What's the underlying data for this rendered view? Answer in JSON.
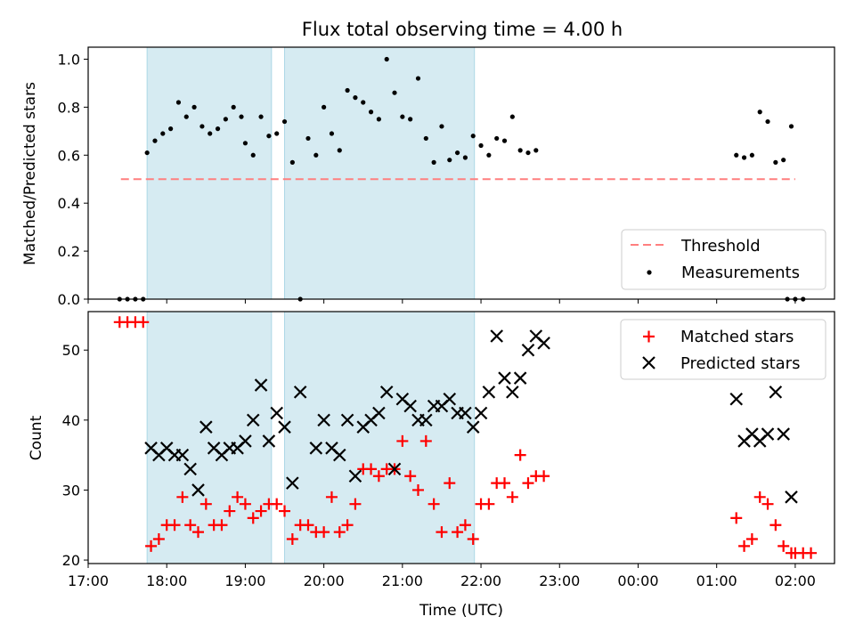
{
  "chart_data": [
    {
      "type": "scatter",
      "title": "Flux total observing time = 4.00 h",
      "ylabel": "Matched/Predicted stars",
      "xlim": [
        "17:00",
        "02:30"
      ],
      "ylim": [
        0.0,
        1.05
      ],
      "yticks": [
        "0.0",
        "0.2",
        "0.4",
        "0.6",
        "0.8",
        "1.0"
      ],
      "legend_position": "lower-right",
      "shaded_intervals": [
        [
          "17:45",
          "19:20"
        ],
        [
          "19:30",
          "21:55"
        ]
      ],
      "threshold": {
        "name": "Threshold",
        "y": 0.5,
        "x_start": "17:25",
        "x_end": "02:00",
        "color": "#ff7f7f"
      },
      "series": [
        {
          "name": "Measurements",
          "color": "#000000",
          "points": [
            [
              "17:24",
              0.0
            ],
            [
              "17:30",
              0.0
            ],
            [
              "17:36",
              0.0
            ],
            [
              "17:42",
              0.0
            ],
            [
              "17:45",
              0.61
            ],
            [
              "17:51",
              0.66
            ],
            [
              "17:57",
              0.69
            ],
            [
              "18:03",
              0.71
            ],
            [
              "18:09",
              0.82
            ],
            [
              "18:15",
              0.76
            ],
            [
              "18:21",
              0.8
            ],
            [
              "18:27",
              0.72
            ],
            [
              "18:33",
              0.69
            ],
            [
              "18:39",
              0.71
            ],
            [
              "18:45",
              0.75
            ],
            [
              "18:51",
              0.8
            ],
            [
              "18:57",
              0.76
            ],
            [
              "19:00",
              0.65
            ],
            [
              "19:06",
              0.6
            ],
            [
              "19:12",
              0.76
            ],
            [
              "19:18",
              0.68
            ],
            [
              "19:24",
              0.69
            ],
            [
              "19:30",
              0.74
            ],
            [
              "19:36",
              0.57
            ],
            [
              "19:42",
              0.0
            ],
            [
              "19:48",
              0.67
            ],
            [
              "19:54",
              0.6
            ],
            [
              "20:00",
              0.8
            ],
            [
              "20:06",
              0.69
            ],
            [
              "20:12",
              0.62
            ],
            [
              "20:18",
              0.87
            ],
            [
              "20:24",
              0.84
            ],
            [
              "20:30",
              0.82
            ],
            [
              "20:36",
              0.78
            ],
            [
              "20:42",
              0.75
            ],
            [
              "20:48",
              1.0
            ],
            [
              "20:54",
              0.86
            ],
            [
              "21:00",
              0.76
            ],
            [
              "21:06",
              0.75
            ],
            [
              "21:12",
              0.92
            ],
            [
              "21:18",
              0.67
            ],
            [
              "21:24",
              0.57
            ],
            [
              "21:30",
              0.72
            ],
            [
              "21:36",
              0.58
            ],
            [
              "21:42",
              0.61
            ],
            [
              "21:48",
              0.59
            ],
            [
              "21:54",
              0.68
            ],
            [
              "22:00",
              0.64
            ],
            [
              "22:06",
              0.6
            ],
            [
              "22:12",
              0.67
            ],
            [
              "22:18",
              0.66
            ],
            [
              "22:24",
              0.76
            ],
            [
              "22:30",
              0.62
            ],
            [
              "22:36",
              0.61
            ],
            [
              "22:42",
              0.62
            ],
            [
              "01:15",
              0.6
            ],
            [
              "01:21",
              0.59
            ],
            [
              "01:27",
              0.6
            ],
            [
              "01:33",
              0.78
            ],
            [
              "01:39",
              0.74
            ],
            [
              "01:45",
              0.57
            ],
            [
              "01:51",
              0.58
            ],
            [
              "01:57",
              0.72
            ],
            [
              "01:54",
              0.0
            ],
            [
              "02:00",
              0.0
            ],
            [
              "02:06",
              0.0
            ]
          ]
        }
      ]
    },
    {
      "type": "scatter",
      "xlabel": "Time (UTC)",
      "ylabel": "Count",
      "xlim": [
        "17:00",
        "02:30"
      ],
      "ylim": [
        19.5,
        55.5
      ],
      "xticks": [
        "17:00",
        "18:00",
        "19:00",
        "20:00",
        "21:00",
        "22:00",
        "23:00",
        "00:00",
        "01:00",
        "02:00"
      ],
      "yticks": [
        "20",
        "30",
        "40",
        "50"
      ],
      "legend_position": "upper-right",
      "shaded_intervals": [
        [
          "17:45",
          "19:20"
        ],
        [
          "19:30",
          "21:55"
        ]
      ],
      "series": [
        {
          "name": "Matched stars",
          "color": "#ff0000",
          "marker": "+",
          "points": [
            [
              "17:24",
              54
            ],
            [
              "17:30",
              54
            ],
            [
              "17:36",
              54
            ],
            [
              "17:42",
              54
            ],
            [
              "17:48",
              22
            ],
            [
              "17:54",
              23
            ],
            [
              "18:00",
              25
            ],
            [
              "18:06",
              25
            ],
            [
              "18:12",
              29
            ],
            [
              "18:18",
              25
            ],
            [
              "18:24",
              24
            ],
            [
              "18:30",
              28
            ],
            [
              "18:36",
              25
            ],
            [
              "18:42",
              25
            ],
            [
              "18:48",
              27
            ],
            [
              "18:54",
              29
            ],
            [
              "19:00",
              28
            ],
            [
              "19:06",
              26
            ],
            [
              "19:12",
              27
            ],
            [
              "19:18",
              28
            ],
            [
              "19:24",
              28
            ],
            [
              "19:30",
              27
            ],
            [
              "19:36",
              23
            ],
            [
              "19:42",
              25
            ],
            [
              "19:48",
              25
            ],
            [
              "19:54",
              24
            ],
            [
              "20:00",
              24
            ],
            [
              "20:06",
              29
            ],
            [
              "20:12",
              24
            ],
            [
              "20:18",
              25
            ],
            [
              "20:24",
              28
            ],
            [
              "20:30",
              33
            ],
            [
              "20:36",
              33
            ],
            [
              "20:42",
              32
            ],
            [
              "20:48",
              33
            ],
            [
              "20:54",
              33
            ],
            [
              "21:00",
              37
            ],
            [
              "21:06",
              32
            ],
            [
              "21:12",
              30
            ],
            [
              "21:18",
              37
            ],
            [
              "21:24",
              28
            ],
            [
              "21:30",
              24
            ],
            [
              "21:36",
              31
            ],
            [
              "21:42",
              24
            ],
            [
              "21:48",
              25
            ],
            [
              "21:54",
              23
            ],
            [
              "22:00",
              28
            ],
            [
              "22:06",
              28
            ],
            [
              "22:12",
              31
            ],
            [
              "22:18",
              31
            ],
            [
              "22:24",
              29
            ],
            [
              "22:30",
              35
            ],
            [
              "22:36",
              31
            ],
            [
              "22:42",
              32
            ],
            [
              "22:48",
              32
            ],
            [
              "01:15",
              26
            ],
            [
              "01:21",
              22
            ],
            [
              "01:27",
              23
            ],
            [
              "01:33",
              29
            ],
            [
              "01:39",
              28
            ],
            [
              "01:45",
              25
            ],
            [
              "01:51",
              22
            ],
            [
              "01:57",
              21
            ],
            [
              "02:00",
              21
            ],
            [
              "02:06",
              21
            ],
            [
              "02:12",
              21
            ]
          ]
        },
        {
          "name": "Predicted stars",
          "color": "#000000",
          "marker": "x",
          "points": [
            [
              "17:48",
              36
            ],
            [
              "17:54",
              35
            ],
            [
              "18:00",
              36
            ],
            [
              "18:06",
              35
            ],
            [
              "18:12",
              35
            ],
            [
              "18:18",
              33
            ],
            [
              "18:24",
              30
            ],
            [
              "18:30",
              39
            ],
            [
              "18:36",
              36
            ],
            [
              "18:42",
              35
            ],
            [
              "18:48",
              36
            ],
            [
              "18:54",
              36
            ],
            [
              "19:00",
              37
            ],
            [
              "19:06",
              40
            ],
            [
              "19:12",
              45
            ],
            [
              "19:18",
              37
            ],
            [
              "19:24",
              41
            ],
            [
              "19:30",
              39
            ],
            [
              "19:36",
              31
            ],
            [
              "19:42",
              44
            ],
            [
              "19:54",
              36
            ],
            [
              "20:00",
              40
            ],
            [
              "20:06",
              36
            ],
            [
              "20:12",
              35
            ],
            [
              "20:18",
              40
            ],
            [
              "20:24",
              32
            ],
            [
              "20:30",
              39
            ],
            [
              "20:36",
              40
            ],
            [
              "20:42",
              41
            ],
            [
              "20:48",
              44
            ],
            [
              "20:54",
              33
            ],
            [
              "21:00",
              43
            ],
            [
              "21:06",
              42
            ],
            [
              "21:12",
              40
            ],
            [
              "21:18",
              40
            ],
            [
              "21:24",
              42
            ],
            [
              "21:30",
              42
            ],
            [
              "21:36",
              43
            ],
            [
              "21:42",
              41
            ],
            [
              "21:48",
              41
            ],
            [
              "21:54",
              39
            ],
            [
              "22:00",
              41
            ],
            [
              "22:06",
              44
            ],
            [
              "22:12",
              52
            ],
            [
              "22:18",
              46
            ],
            [
              "22:24",
              44
            ],
            [
              "22:30",
              46
            ],
            [
              "22:36",
              50
            ],
            [
              "22:42",
              52
            ],
            [
              "22:48",
              51
            ],
            [
              "01:15",
              43
            ],
            [
              "01:21",
              37
            ],
            [
              "01:27",
              38
            ],
            [
              "01:33",
              37
            ],
            [
              "01:39",
              38
            ],
            [
              "01:45",
              44
            ],
            [
              "01:51",
              38
            ],
            [
              "01:57",
              29
            ]
          ]
        }
      ]
    }
  ]
}
